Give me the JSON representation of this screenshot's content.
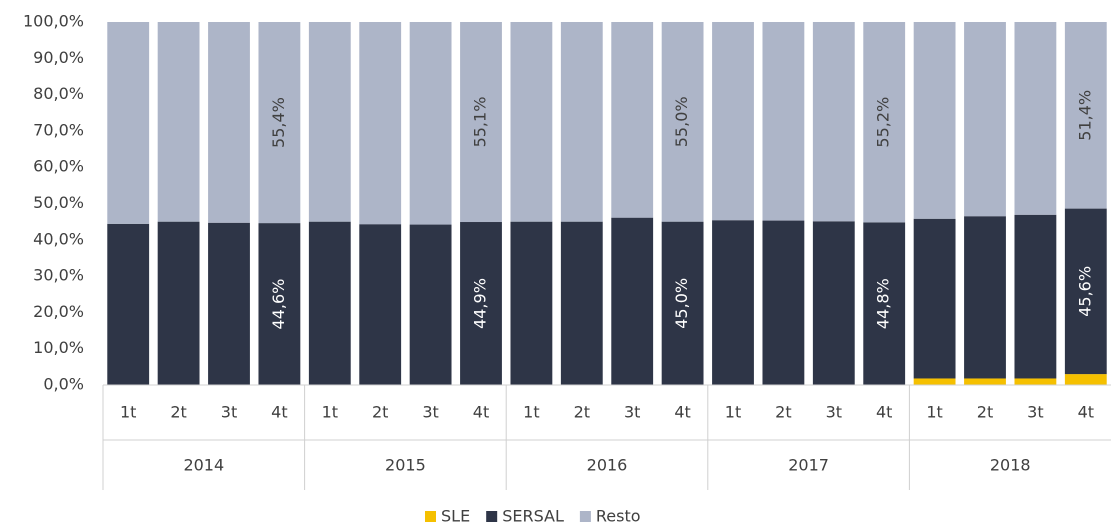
{
  "chart_data": {
    "type": "stacked_bar",
    "categories": [
      "1t",
      "2t",
      "3t",
      "4t",
      "1t",
      "2t",
      "3t",
      "4t",
      "1t",
      "2t",
      "3t",
      "4t",
      "1t",
      "2t",
      "3t",
      "4t",
      "1t",
      "2t",
      "3t",
      "4t"
    ],
    "category_groups": [
      "2014",
      "2015",
      "2016",
      "2017",
      "2018"
    ],
    "series": [
      {
        "name": "SLE",
        "color": "#f5c000",
        "values": [
          0,
          0,
          0,
          0,
          0,
          0,
          0,
          0,
          0,
          0,
          0,
          0,
          0,
          0,
          0,
          0,
          1.8,
          1.8,
          1.8,
          3.0
        ]
      },
      {
        "name": "SERSAL",
        "color": "#2e3547",
        "values": [
          44.4,
          45.0,
          44.7,
          44.6,
          45.0,
          44.3,
          44.2,
          44.9,
          45.0,
          45.0,
          46.1,
          45.0,
          45.4,
          45.3,
          45.1,
          44.8,
          44.0,
          44.7,
          45.1,
          45.6
        ],
        "value_labels": [
          null,
          null,
          null,
          "44,6%",
          null,
          null,
          null,
          "44,9%",
          null,
          null,
          null,
          "45,0%",
          null,
          null,
          null,
          "44,8%",
          null,
          null,
          null,
          "45,6%"
        ]
      },
      {
        "name": "Resto",
        "color": "#adb5c8",
        "values": [
          55.6,
          55.0,
          55.3,
          55.4,
          55.0,
          55.7,
          55.8,
          55.1,
          55.0,
          55.0,
          53.9,
          55.0,
          54.6,
          54.7,
          54.9,
          55.2,
          54.2,
          53.5,
          53.1,
          51.4
        ],
        "value_labels": [
          null,
          null,
          null,
          "55,4%",
          null,
          null,
          null,
          "55,1%",
          null,
          null,
          null,
          "55,0%",
          null,
          null,
          null,
          "55,2%",
          null,
          null,
          null,
          "51,4%"
        ]
      }
    ],
    "ylim": [
      0,
      100
    ],
    "yticks": [
      {
        "value": 0,
        "label": "0,0%"
      },
      {
        "value": 10,
        "label": "10,0%"
      },
      {
        "value": 20,
        "label": "20,0%"
      },
      {
        "value": 30,
        "label": "30,0%"
      },
      {
        "value": 40,
        "label": "40,0%"
      },
      {
        "value": 50,
        "label": "50,0%"
      },
      {
        "value": 60,
        "label": "60,0%"
      },
      {
        "value": 70,
        "label": "70,0%"
      },
      {
        "value": 80,
        "label": "80,0%"
      },
      {
        "value": 90,
        "label": "90,0%"
      },
      {
        "value": 100,
        "label": "100,0%"
      }
    ],
    "legend": "bottom"
  }
}
